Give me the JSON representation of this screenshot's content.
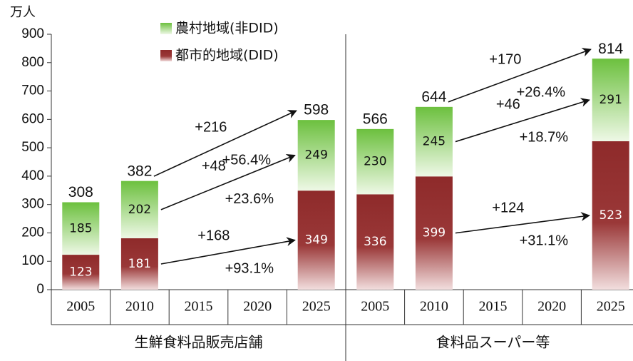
{
  "chart_data": [
    {
      "type": "bar",
      "stacked": true,
      "unit_label": "万人",
      "group_label": "生鮮食料品販売店舗",
      "categories": [
        "2005",
        "2010",
        "2015",
        "2020",
        "2025"
      ],
      "series": [
        {
          "name": "都市的地域(DID)",
          "color": "#8e2a2a",
          "values": [
            123,
            181,
            null,
            null,
            349
          ]
        },
        {
          "name": "農村地域(非DID)",
          "color": "#6cc03e",
          "values": [
            185,
            202,
            null,
            null,
            249
          ]
        }
      ],
      "totals": [
        308,
        382,
        null,
        null,
        598
      ],
      "annotations": [
        {
          "change": "+216",
          "rate": "+56.4%"
        },
        {
          "change": "+48",
          "rate": "+23.6%"
        },
        {
          "change": "+168",
          "rate": "+93.1%"
        }
      ],
      "ylim": [
        0,
        900
      ],
      "yticks": [
        0,
        100,
        200,
        300,
        400,
        500,
        600,
        700,
        800,
        900
      ],
      "legend": "top"
    },
    {
      "type": "bar",
      "stacked": true,
      "group_label": "食料品スーパー等",
      "categories": [
        "2005",
        "2010",
        "2015",
        "2020",
        "2025"
      ],
      "series": [
        {
          "color": "#8e2a2a",
          "values": [
            336,
            399,
            null,
            null,
            523
          ]
        },
        {
          "color": "#6cc03e",
          "values": [
            230,
            245,
            null,
            null,
            291
          ]
        }
      ],
      "totals": [
        566,
        644,
        null,
        null,
        814
      ],
      "annotations": [
        {
          "change": "+170",
          "rate": "+26.4%"
        },
        {
          "change": "+46",
          "rate": "+18.7%"
        },
        {
          "change": "+124",
          "rate": "+31.1%"
        }
      ],
      "ylim": [
        0,
        900
      ]
    }
  ]
}
